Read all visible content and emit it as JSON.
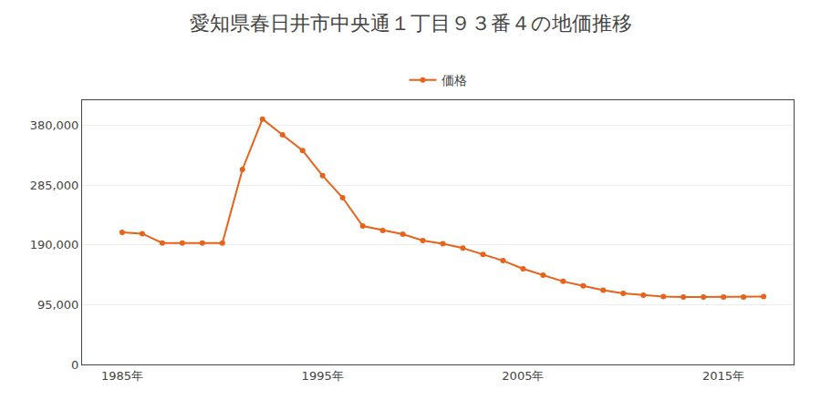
{
  "chart_data": {
    "type": "line",
    "title": "愛知県春日井市中央通１丁目９３番４の地価推移",
    "x": [
      1985,
      1986,
      1987,
      1988,
      1989,
      1990,
      1991,
      1992,
      1993,
      1994,
      1995,
      1996,
      1997,
      1998,
      1999,
      2000,
      2001,
      2002,
      2003,
      2004,
      2005,
      2006,
      2007,
      2008,
      2009,
      2010,
      2011,
      2012,
      2013,
      2014,
      2015,
      2016,
      2017
    ],
    "series": [
      {
        "name": "価格",
        "color": "#e8621a",
        "marker": "circle",
        "values": [
          210000,
          208000,
          193000,
          193000,
          193000,
          193000,
          310000,
          390000,
          365000,
          340000,
          300000,
          265000,
          220000,
          213000,
          207000,
          197000,
          192000,
          185000,
          175000,
          165000,
          152000,
          142000,
          132000,
          125000,
          118000,
          113000,
          110000,
          108000,
          107000,
          107000,
          107000,
          107000,
          108000
        ]
      }
    ],
    "xlim": [
      1983.0,
      2018.5
    ],
    "xticks": [
      {
        "value": 1985,
        "label": "1985年"
      },
      {
        "value": 1995,
        "label": "1995年"
      },
      {
        "value": 2005,
        "label": "2005年"
      },
      {
        "value": 2015,
        "label": "2015年"
      }
    ],
    "ylim": [
      0,
      420000
    ],
    "yticks": [
      0,
      {
        "value": 95000,
        "label": "95,000"
      },
      {
        "value": 190000,
        "label": "190,000"
      },
      {
        "value": 285000,
        "label": "285,000"
      },
      {
        "value": 380000,
        "label": "380,000"
      }
    ],
    "grid": "y",
    "legend": "top"
  }
}
